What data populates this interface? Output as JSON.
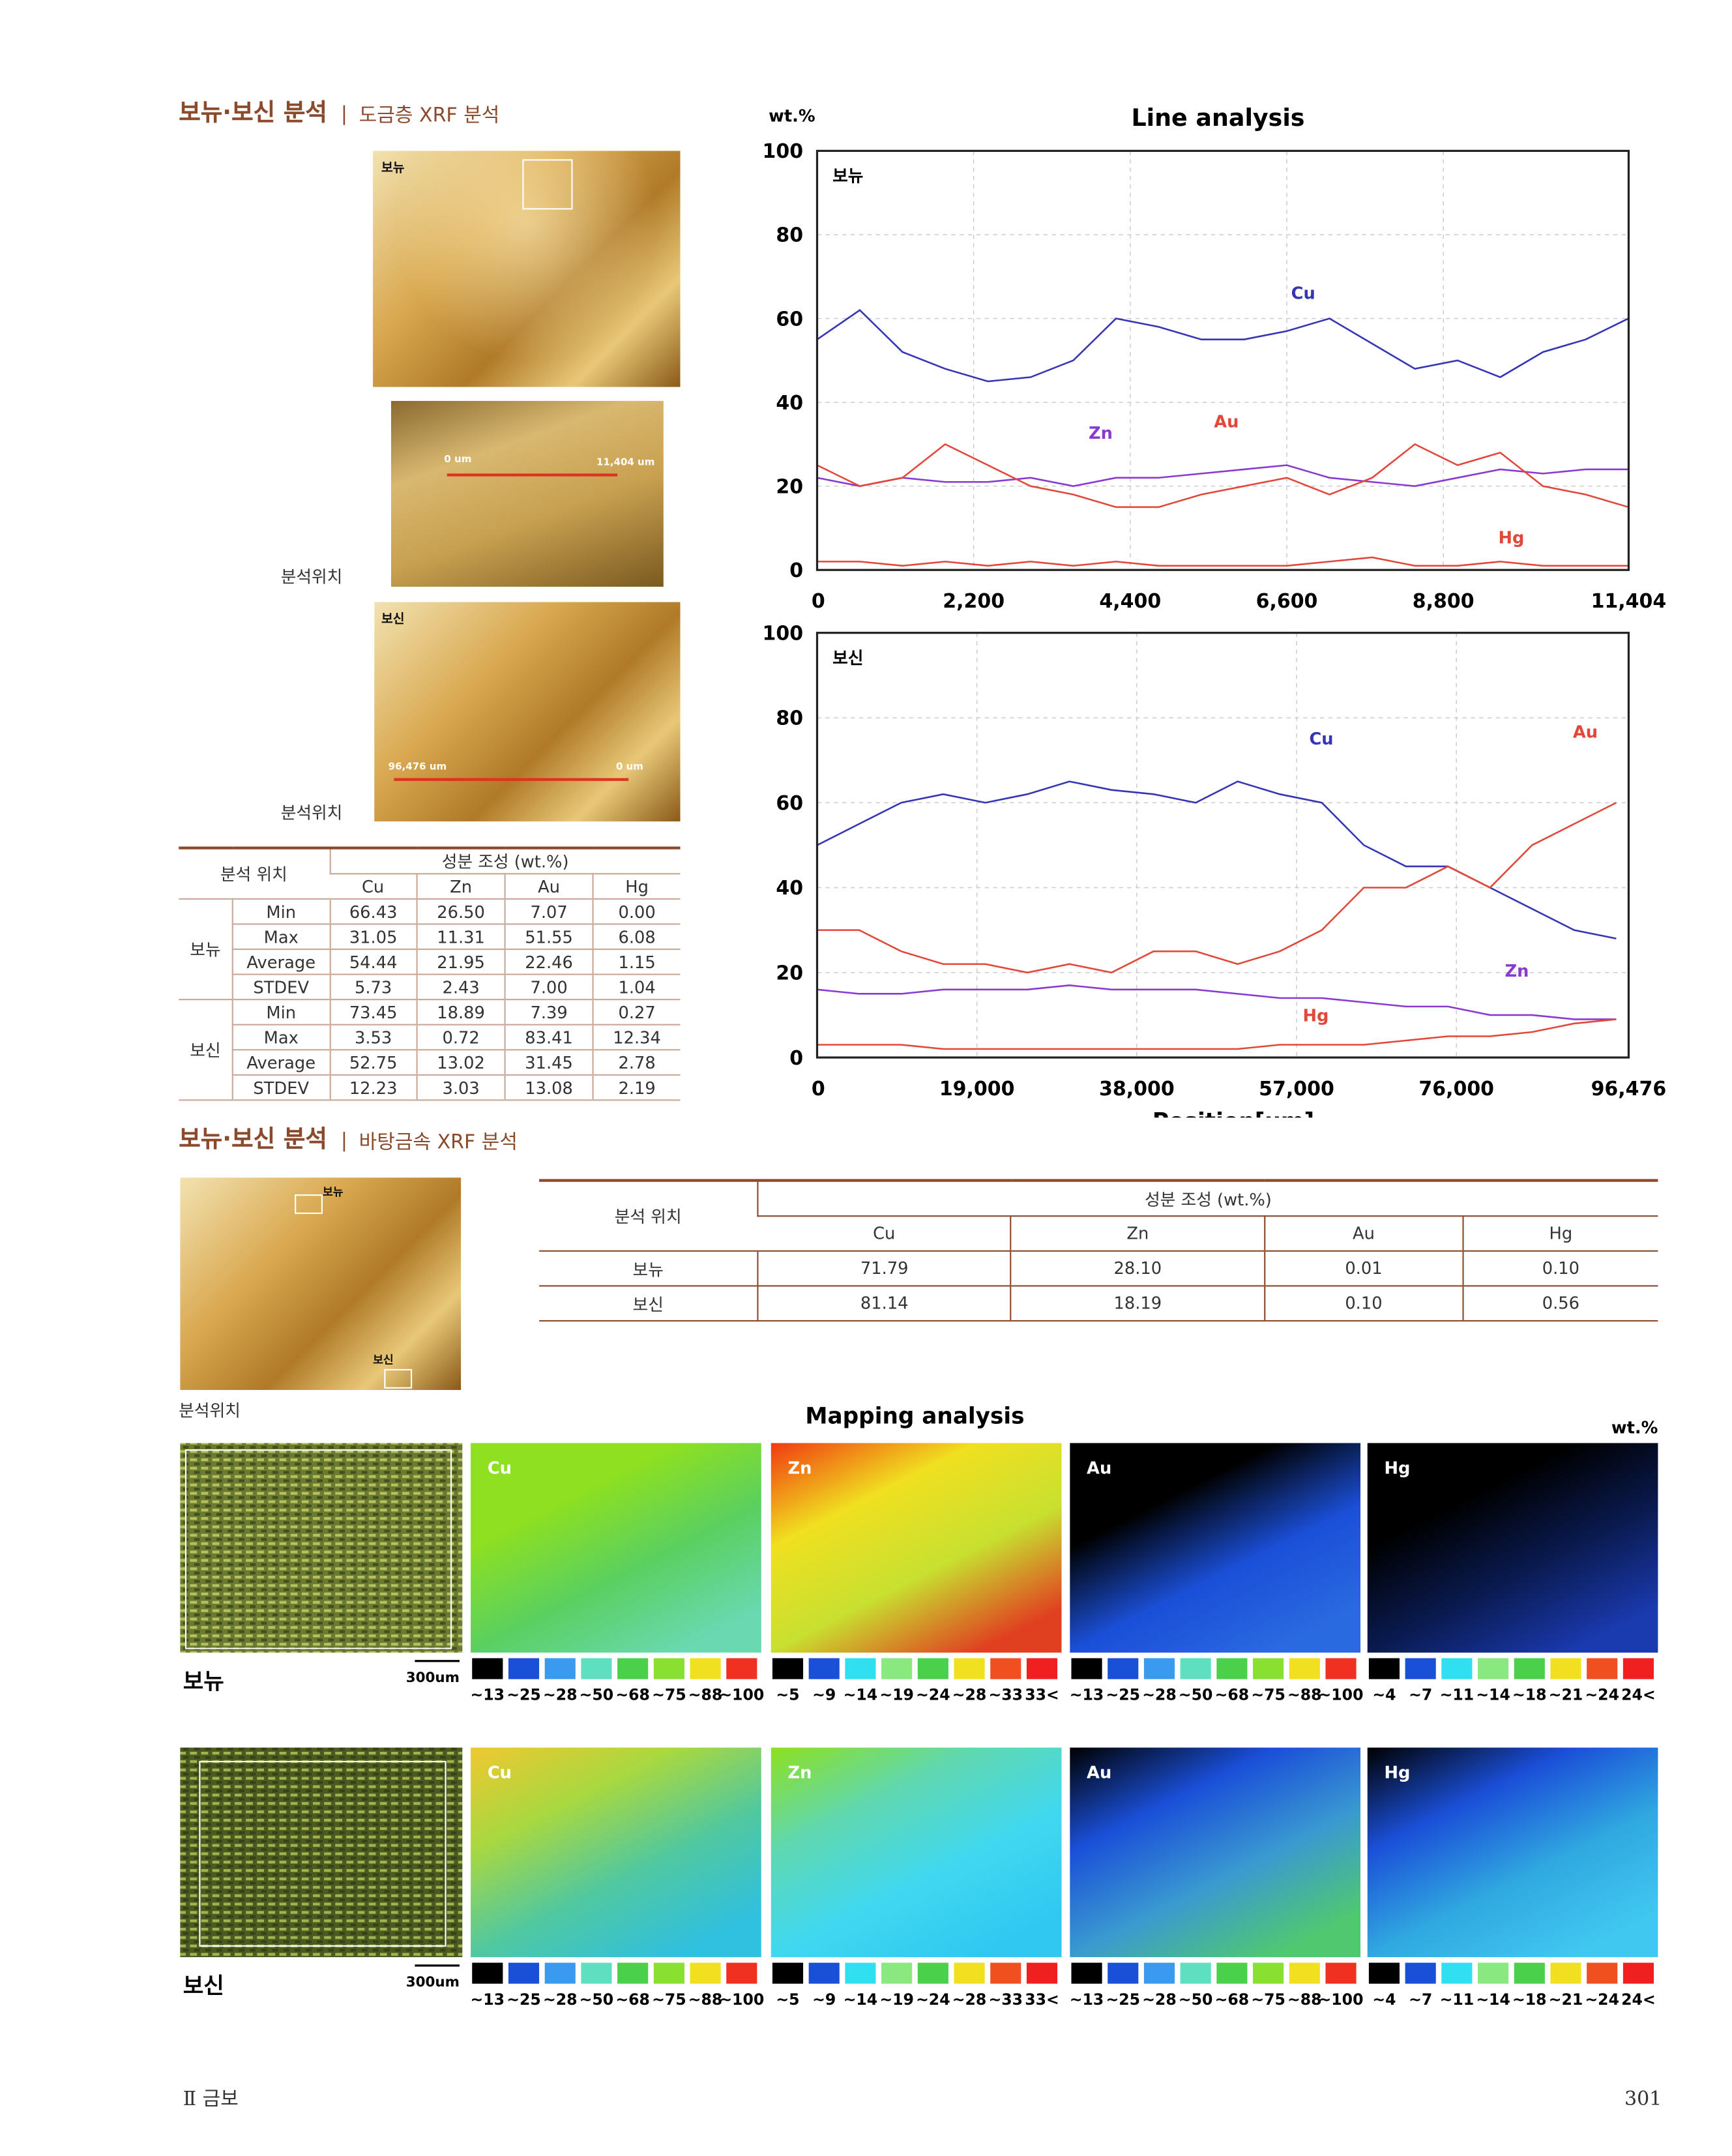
{
  "section1": {
    "title": "보뉴·보신 분석",
    "separator": "|",
    "subtitle": "도금층 XRF 분석"
  },
  "photos1": {
    "top_label": "보뉴",
    "mid_start": "0 um",
    "mid_end": "11,404 um",
    "location_1": "분석위치",
    "bottom_label": "보신",
    "bottom_start": "96,476 um",
    "bottom_end": "0 um",
    "location_2": "분석위치"
  },
  "table1": {
    "header": {
      "location": "분석 위치",
      "composition": "성분 조성 (wt.%)",
      "columns": [
        "Cu",
        "Zn",
        "Au",
        "Hg"
      ]
    },
    "groups": [
      {
        "name": "보뉴",
        "rows": [
          {
            "stat": "Min",
            "values": [
              "66.43",
              "26.50",
              "7.07",
              "0.00"
            ]
          },
          {
            "stat": "Max",
            "values": [
              "31.05",
              "11.31",
              "51.55",
              "6.08"
            ]
          },
          {
            "stat": "Average",
            "values": [
              "54.44",
              "21.95",
              "22.46",
              "1.15"
            ]
          },
          {
            "stat": "STDEV",
            "values": [
              "5.73",
              "2.43",
              "7.00",
              "1.04"
            ]
          }
        ]
      },
      {
        "name": "보신",
        "rows": [
          {
            "stat": "Min",
            "values": [
              "73.45",
              "18.89",
              "7.39",
              "0.27"
            ]
          },
          {
            "stat": "Max",
            "values": [
              "3.53",
              "0.72",
              "83.41",
              "12.34"
            ]
          },
          {
            "stat": "Average",
            "values": [
              "52.75",
              "13.02",
              "31.45",
              "2.78"
            ]
          },
          {
            "stat": "STDEV",
            "values": [
              "12.23",
              "3.03",
              "13.08",
              "2.19"
            ]
          }
        ]
      }
    ]
  },
  "chart_data": [
    {
      "type": "line",
      "title": "Line analysis",
      "y_label": "wt.%",
      "panel_label": "보뉴",
      "x": [
        0,
        600,
        1200,
        1800,
        2400,
        3000,
        3600,
        4200,
        4800,
        5400,
        6000,
        6600,
        7200,
        7800,
        8400,
        9000,
        9600,
        10200,
        10800,
        11400
      ],
      "series": [
        {
          "name": "Cu",
          "color": "#3535b5",
          "values": [
            55,
            62,
            52,
            48,
            45,
            46,
            50,
            60,
            58,
            55,
            55,
            57,
            60,
            54,
            48,
            50,
            46,
            52,
            55,
            60
          ]
        },
        {
          "name": "Zn",
          "color": "#8a3ad0",
          "values": [
            22,
            20,
            22,
            21,
            21,
            22,
            20,
            22,
            22,
            23,
            24,
            25,
            22,
            21,
            20,
            22,
            24,
            23,
            24,
            24
          ]
        },
        {
          "name": "Au",
          "color": "#e2483a",
          "values": [
            25,
            20,
            22,
            30,
            25,
            20,
            18,
            15,
            15,
            18,
            20,
            22,
            18,
            22,
            30,
            25,
            28,
            20,
            18,
            15
          ]
        },
        {
          "name": "Hg",
          "color": "#e2483a",
          "values": [
            2,
            2,
            1,
            2,
            1,
            2,
            1,
            2,
            1,
            1,
            1,
            1,
            2,
            3,
            1,
            1,
            2,
            1,
            1,
            1
          ]
        }
      ],
      "xlim": [
        0,
        11404
      ],
      "ylim": [
        0,
        100
      ],
      "xticks": [
        0,
        {
          "value": 2200,
          "label": "2,200"
        },
        {
          "value": 4400,
          "label": "4,400"
        },
        {
          "value": 6600,
          "label": "6,600"
        },
        {
          "value": 8800,
          "label": "8,800"
        },
        {
          "value": 11404,
          "label": "11,404"
        }
      ],
      "yticks": [
        0,
        20,
        40,
        60,
        80,
        100
      ],
      "grid": true
    },
    {
      "type": "line",
      "x_label": "Position[um]",
      "panel_label": "보신",
      "x": [
        0,
        5000,
        10000,
        15000,
        20000,
        25000,
        30000,
        35000,
        40000,
        45000,
        50000,
        55000,
        60000,
        65000,
        70000,
        75000,
        80000,
        85000,
        90000,
        95000
      ],
      "series": [
        {
          "name": "Cu",
          "color": "#3535b5",
          "values": [
            50,
            55,
            60,
            62,
            60,
            62,
            65,
            63,
            62,
            60,
            65,
            62,
            60,
            50,
            45,
            45,
            40,
            35,
            30,
            28
          ]
        },
        {
          "name": "Zn",
          "color": "#8a3ad0",
          "values": [
            16,
            15,
            15,
            16,
            16,
            16,
            17,
            16,
            16,
            16,
            15,
            14,
            14,
            13,
            12,
            12,
            10,
            10,
            9,
            9
          ]
        },
        {
          "name": "Au",
          "color": "#e2483a",
          "values": [
            30,
            30,
            25,
            22,
            22,
            20,
            22,
            20,
            25,
            25,
            22,
            25,
            30,
            40,
            40,
            45,
            40,
            50,
            55,
            60
          ]
        },
        {
          "name": "Hg",
          "color": "#e2483a",
          "values": [
            3,
            3,
            3,
            2,
            2,
            2,
            2,
            2,
            2,
            2,
            2,
            3,
            3,
            3,
            4,
            5,
            5,
            6,
            8,
            9
          ]
        }
      ],
      "xlim": [
        0,
        96476
      ],
      "ylim": [
        0,
        100
      ],
      "xticks": [
        0,
        {
          "value": 19000,
          "label": "19,000"
        },
        {
          "value": 38000,
          "label": "38,000"
        },
        {
          "value": 57000,
          "label": "57,000"
        },
        {
          "value": 76000,
          "label": "76,000"
        },
        {
          "value": 96476,
          "label": "96,476"
        }
      ],
      "yticks": [
        0,
        20,
        40,
        60,
        80,
        100
      ],
      "grid": true
    }
  ],
  "section2": {
    "title": "보뉴·보신 분석",
    "separator": "|",
    "subtitle": "바탕금속 XRF 분석"
  },
  "photos2": {
    "top_label": "보뉴",
    "bottom_label": "보신",
    "location": "분석위치"
  },
  "table2": {
    "header": {
      "location": "분석 위치",
      "composition": "성분 조성 (wt.%)",
      "columns": [
        "Cu",
        "Zn",
        "Au",
        "Hg"
      ]
    },
    "rows": [
      {
        "name": "보뉴",
        "values": [
          "71.79",
          "28.10",
          "0.01",
          "0.10"
        ]
      },
      {
        "name": "보신",
        "values": [
          "81.14",
          "18.19",
          "0.10",
          "0.56"
        ]
      }
    ]
  },
  "mapping": {
    "title": "Mapping analysis",
    "unit": "wt.%",
    "elements": [
      "Cu",
      "Zn",
      "Au",
      "Hg"
    ],
    "rows": [
      {
        "label": "보뉴",
        "scale": "300um"
      },
      {
        "label": "보신",
        "scale": "300um"
      }
    ],
    "legends": [
      {
        "labels": [
          "~13",
          "~25",
          "~28",
          "~50",
          "~68",
          "~75",
          "~88",
          "~100"
        ],
        "colors": [
          "#000000",
          "#1a4fd8",
          "#3a9aef",
          "#5ee0c0",
          "#4ad04a",
          "#8ae030",
          "#f0e020",
          "#f03020"
        ]
      },
      {
        "labels": [
          "~5",
          "~9",
          "~14",
          "~19",
          "~24",
          "~28",
          "~33",
          "33<"
        ],
        "colors": [
          "#000000",
          "#1a4fd8",
          "#30e0f0",
          "#8ae880",
          "#4ad04a",
          "#f0e020",
          "#f05020",
          "#f02020"
        ]
      },
      {
        "labels": [
          "~13",
          "~25",
          "~28",
          "~50",
          "~68",
          "~75",
          "~88",
          "~100"
        ],
        "colors": [
          "#000000",
          "#1a4fd8",
          "#3a9aef",
          "#5ee0c0",
          "#4ad04a",
          "#8ae030",
          "#f0e020",
          "#f03020"
        ]
      },
      {
        "labels": [
          "~4",
          "~7",
          "~11",
          "~14",
          "~18",
          "~21",
          "~24",
          "24<"
        ],
        "colors": [
          "#000000",
          "#1a4fd8",
          "#30e0f0",
          "#8ae880",
          "#4ad04a",
          "#f0e020",
          "#f05020",
          "#f02020"
        ]
      }
    ]
  },
  "footer": {
    "section": "Ⅱ 금보",
    "page": "301"
  }
}
